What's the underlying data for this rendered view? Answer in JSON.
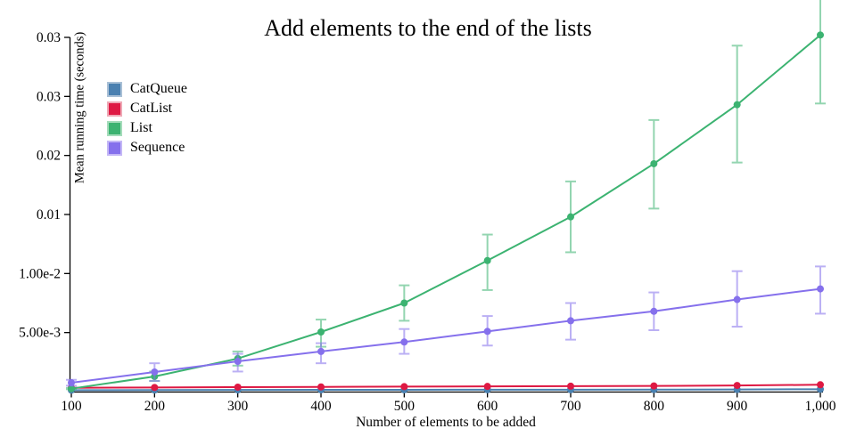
{
  "chart_data": {
    "type": "line",
    "title": "Add elements to the end of the lists",
    "xlabel": "Number of elements to be added",
    "ylabel": "Mean running time (seconds)",
    "grid": false,
    "legend_position": "top-left",
    "xlim": [
      100,
      1000
    ],
    "ylim": [
      0,
      0.03
    ],
    "x": [
      100,
      200,
      300,
      400,
      500,
      600,
      700,
      800,
      900,
      1000
    ],
    "x_tick_labels": [
      "100",
      "200",
      "300",
      "400",
      "500",
      "600",
      "700",
      "800",
      "900",
      "1,000"
    ],
    "y_ticks": [
      {
        "value": 0.005,
        "label": "5.00e-3"
      },
      {
        "value": 0.01,
        "label": "1.00e-2"
      },
      {
        "value": 0.015,
        "label": "0.01"
      },
      {
        "value": 0.02,
        "label": "0.02"
      },
      {
        "value": 0.025,
        "label": "0.03"
      },
      {
        "value": 0.03,
        "label": "0.03"
      }
    ],
    "series": [
      {
        "name": "CatQueue",
        "color": "#4a80b0",
        "swatch_border": "#a9c0d6",
        "values": [
          0.00012,
          0.00013,
          0.00014,
          0.00015,
          0.00015,
          0.00016,
          0.00016,
          0.00017,
          0.00018,
          0.0002
        ],
        "err_lo": null,
        "err_hi": null
      },
      {
        "name": "CatList",
        "color": "#de1943",
        "swatch_border": "#efa9b6",
        "values": [
          0.00032,
          0.00035,
          0.00038,
          0.0004,
          0.00042,
          0.00044,
          0.00046,
          0.00048,
          0.00052,
          0.00058
        ],
        "err_lo": null,
        "err_hi": null
      },
      {
        "name": "List",
        "color": "#3cb371",
        "swatch_border": "#a4dcba",
        "values": [
          0.00025,
          0.00128,
          0.0028,
          0.00505,
          0.0075,
          0.0111,
          0.0148,
          0.0193,
          0.0243,
          0.0302
        ],
        "err_lo": [
          0.0002,
          0.0009,
          0.0022,
          0.0038,
          0.006,
          0.0086,
          0.0118,
          0.0155,
          0.0194,
          0.0244
        ],
        "err_hi": [
          0.0003,
          0.0017,
          0.0034,
          0.0061,
          0.009,
          0.0133,
          0.0178,
          0.023,
          0.0293,
          0.036
        ]
      },
      {
        "name": "Sequence",
        "color": "#8570ec",
        "swatch_border": "#c4b7f6",
        "values": [
          0.00075,
          0.00166,
          0.00256,
          0.0034,
          0.0042,
          0.0051,
          0.006,
          0.0068,
          0.0078,
          0.0087
        ],
        "err_lo": [
          0.0005,
          0.0009,
          0.0017,
          0.0024,
          0.0032,
          0.0039,
          0.0044,
          0.0052,
          0.0055,
          0.0066
        ],
        "err_hi": [
          0.001,
          0.0024,
          0.0032,
          0.0041,
          0.0053,
          0.0064,
          0.0075,
          0.0084,
          0.0102,
          0.0106
        ]
      }
    ]
  }
}
